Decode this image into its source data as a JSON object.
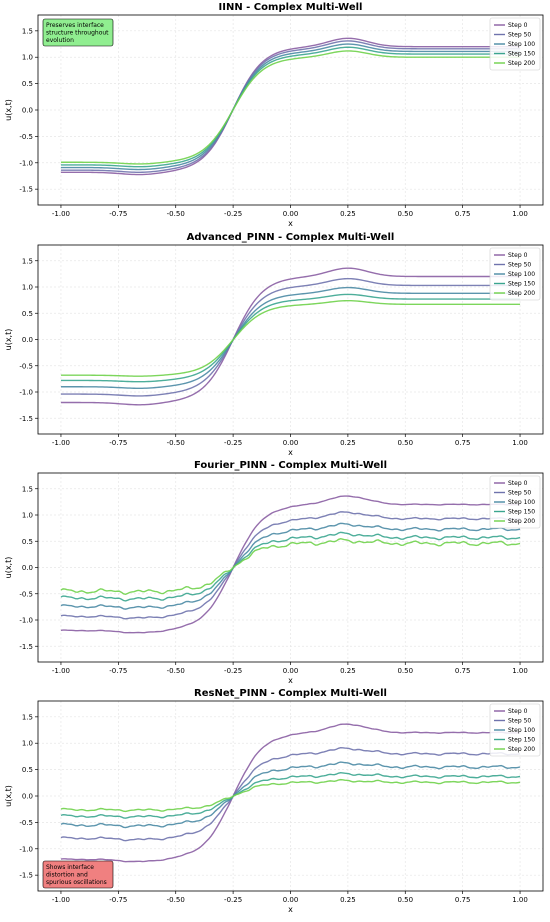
{
  "colors": {
    "step0": "#8a5ea3",
    "step50": "#6f73ad",
    "step100": "#4a8aa4",
    "step150": "#3aa58f",
    "step200": "#6fd14a",
    "annotation_green": "#90ee90",
    "annotation_red": "#f08080",
    "grid": "#e6e6e6"
  },
  "chart_data": [
    {
      "type": "line",
      "title": "IINN - Complex Multi-Well",
      "xlabel": "x",
      "ylabel": "u(x,t)",
      "xlim": [
        -1.1,
        1.1
      ],
      "ylim": [
        -1.8,
        1.8
      ],
      "xticks": [
        "-1.00",
        "-0.75",
        "-0.50",
        "-0.25",
        "0.00",
        "0.25",
        "0.50",
        "0.75",
        "1.00"
      ],
      "yticks": [
        "-1.5",
        "-1.0",
        "-0.5",
        "0.0",
        "0.5",
        "1.0",
        "1.5"
      ],
      "grid": true,
      "legend": "top-right",
      "annotation": {
        "text": [
          "Preserves interface",
          "structure throughout",
          "evolution"
        ],
        "color": "green",
        "position": "top-left"
      },
      "series": [
        {
          "name": "Step 0",
          "low": -1.18,
          "high": 1.2,
          "peak": 0.16,
          "noise": 0
        },
        {
          "name": "Step 50",
          "low": -1.14,
          "high": 1.16,
          "peak": 0.15,
          "noise": 0
        },
        {
          "name": "Step 100",
          "low": -1.09,
          "high": 1.11,
          "peak": 0.14,
          "noise": 0
        },
        {
          "name": "Step 150",
          "low": -1.04,
          "high": 1.06,
          "peak": 0.13,
          "noise": 0
        },
        {
          "name": "Step 200",
          "low": -0.99,
          "high": 1.0,
          "peak": 0.12,
          "noise": 0
        }
      ]
    },
    {
      "type": "line",
      "title": "Advanced_PINN - Complex Multi-Well",
      "xlabel": "x",
      "ylabel": "u(x,t)",
      "xlim": [
        -1.1,
        1.1
      ],
      "ylim": [
        -1.8,
        1.8
      ],
      "xticks": [
        "-1.00",
        "-0.75",
        "-0.50",
        "-0.25",
        "0.00",
        "0.25",
        "0.50",
        "0.75",
        "1.00"
      ],
      "yticks": [
        "-1.5",
        "-1.0",
        "-0.5",
        "0.0",
        "0.5",
        "1.0",
        "1.5"
      ],
      "grid": true,
      "legend": "top-right",
      "series": [
        {
          "name": "Step 0",
          "low": -1.2,
          "high": 1.2,
          "peak": 0.16,
          "noise": 0
        },
        {
          "name": "Step 50",
          "low": -1.04,
          "high": 1.03,
          "peak": 0.13,
          "noise": 0
        },
        {
          "name": "Step 100",
          "low": -0.9,
          "high": 0.88,
          "peak": 0.11,
          "noise": 0
        },
        {
          "name": "Step 150",
          "low": -0.78,
          "high": 0.77,
          "peak": 0.09,
          "noise": 0
        },
        {
          "name": "Step 200",
          "low": -0.68,
          "high": 0.67,
          "peak": 0.07,
          "noise": 0
        }
      ]
    },
    {
      "type": "line",
      "title": "Fourier_PINN - Complex Multi-Well",
      "xlabel": "x",
      "ylabel": "u(x,t)",
      "xlim": [
        -1.1,
        1.1
      ],
      "ylim": [
        -1.8,
        1.8
      ],
      "xticks": [
        "-1.00",
        "-0.75",
        "-0.50",
        "-0.25",
        "0.00",
        "0.25",
        "0.50",
        "0.75",
        "1.00"
      ],
      "yticks": [
        "-1.5",
        "-1.0",
        "-0.5",
        "0.0",
        "0.5",
        "1.0",
        "1.5"
      ],
      "grid": true,
      "legend": "top-right",
      "series": [
        {
          "name": "Step 0",
          "low": -1.2,
          "high": 1.2,
          "peak": 0.16,
          "noise": 0.005
        },
        {
          "name": "Step 50",
          "low": -0.93,
          "high": 0.93,
          "peak": 0.12,
          "noise": 0.012
        },
        {
          "name": "Step 100",
          "low": -0.74,
          "high": 0.73,
          "peak": 0.09,
          "noise": 0.018
        },
        {
          "name": "Step 150",
          "low": -0.58,
          "high": 0.57,
          "peak": 0.07,
          "noise": 0.022
        },
        {
          "name": "Step 200",
          "low": -0.45,
          "high": 0.46,
          "peak": 0.05,
          "noise": 0.026
        }
      ]
    },
    {
      "type": "line",
      "title": "ResNet_PINN - Complex Multi-Well",
      "xlabel": "x",
      "ylabel": "u(x,t)",
      "xlim": [
        -1.1,
        1.1
      ],
      "ylim": [
        -1.8,
        1.8
      ],
      "xticks": [
        "-1.00",
        "-0.75",
        "-0.50",
        "-0.25",
        "0.00",
        "0.25",
        "0.50",
        "0.75",
        "1.00"
      ],
      "yticks": [
        "-1.5",
        "-1.0",
        "-0.5",
        "0.0",
        "0.5",
        "1.0",
        "1.5"
      ],
      "grid": true,
      "legend": "top-right",
      "annotation": {
        "text": [
          "Shows interface",
          "distortion and",
          "spurious oscillations"
        ],
        "color": "red",
        "position": "bottom-left"
      },
      "series": [
        {
          "name": "Step 0",
          "low": -1.2,
          "high": 1.2,
          "peak": 0.16,
          "noise": 0.006
        },
        {
          "name": "Step 50",
          "low": -0.8,
          "high": 0.8,
          "peak": 0.1,
          "noise": 0.014
        },
        {
          "name": "Step 100",
          "low": -0.55,
          "high": 0.55,
          "peak": 0.07,
          "noise": 0.018
        },
        {
          "name": "Step 150",
          "low": -0.38,
          "high": 0.37,
          "peak": 0.05,
          "noise": 0.016
        },
        {
          "name": "Step 200",
          "low": -0.26,
          "high": 0.26,
          "peak": 0.03,
          "noise": 0.014
        }
      ]
    }
  ]
}
